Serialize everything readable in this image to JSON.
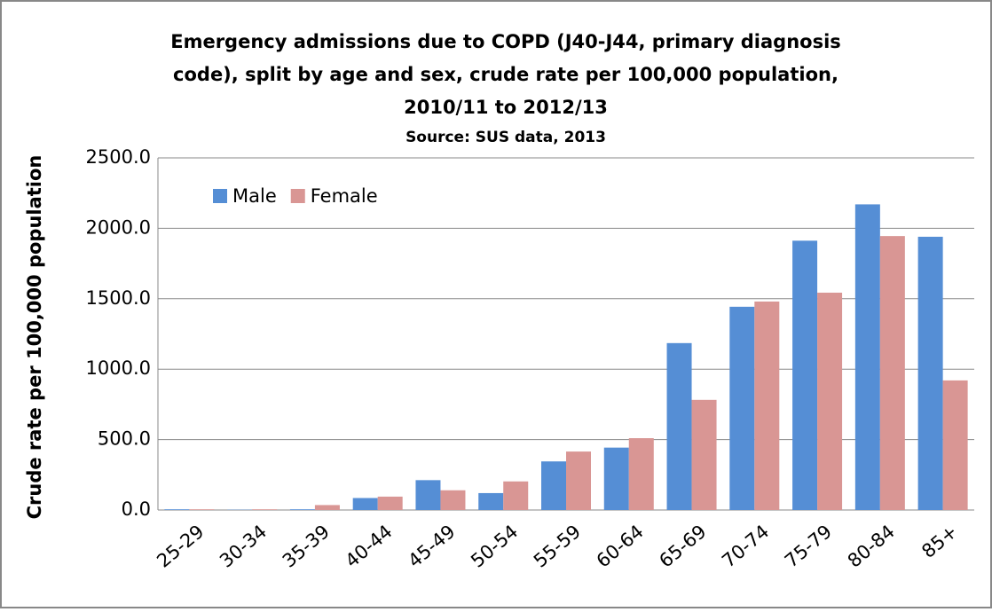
{
  "chart_data": {
    "type": "bar",
    "title": [
      "Emergency admissions due to COPD (J40-J44, primary diagnosis",
      "code), split by age and sex, crude rate per 100,000 population,",
      "2010/11 to 2012/13"
    ],
    "subtitle": "Source: SUS data, 2013",
    "y_label": "Crude rate per 100,000 population",
    "categories": [
      "25-29",
      "30-34",
      "35-39",
      "40-44",
      "45-49",
      "50-54",
      "55-59",
      "60-64",
      "65-69",
      "70-74",
      "75-79",
      "80-84",
      "85+"
    ],
    "series": [
      {
        "name": "Male",
        "color": "#558ed5",
        "values": [
          5,
          2,
          5,
          85,
          212,
          120,
          345,
          443,
          1185,
          1443,
          1912,
          2170,
          1940
        ]
      },
      {
        "name": "Female",
        "color": "#d99694",
        "values": [
          5,
          5,
          35,
          95,
          140,
          203,
          415,
          510,
          782,
          1480,
          1543,
          1945,
          920
        ]
      }
    ],
    "ylim": [
      0,
      2500
    ],
    "yticks": [
      {
        "value": 0,
        "label": "0.0"
      },
      {
        "value": 500,
        "label": "500.0"
      },
      {
        "value": 1000,
        "label": "1000.0"
      },
      {
        "value": 1500,
        "label": "1500.0"
      },
      {
        "value": 2000,
        "label": "2000.0"
      },
      {
        "value": 2500,
        "label": "2500.0"
      }
    ],
    "grid": true,
    "legend": "top-left"
  }
}
